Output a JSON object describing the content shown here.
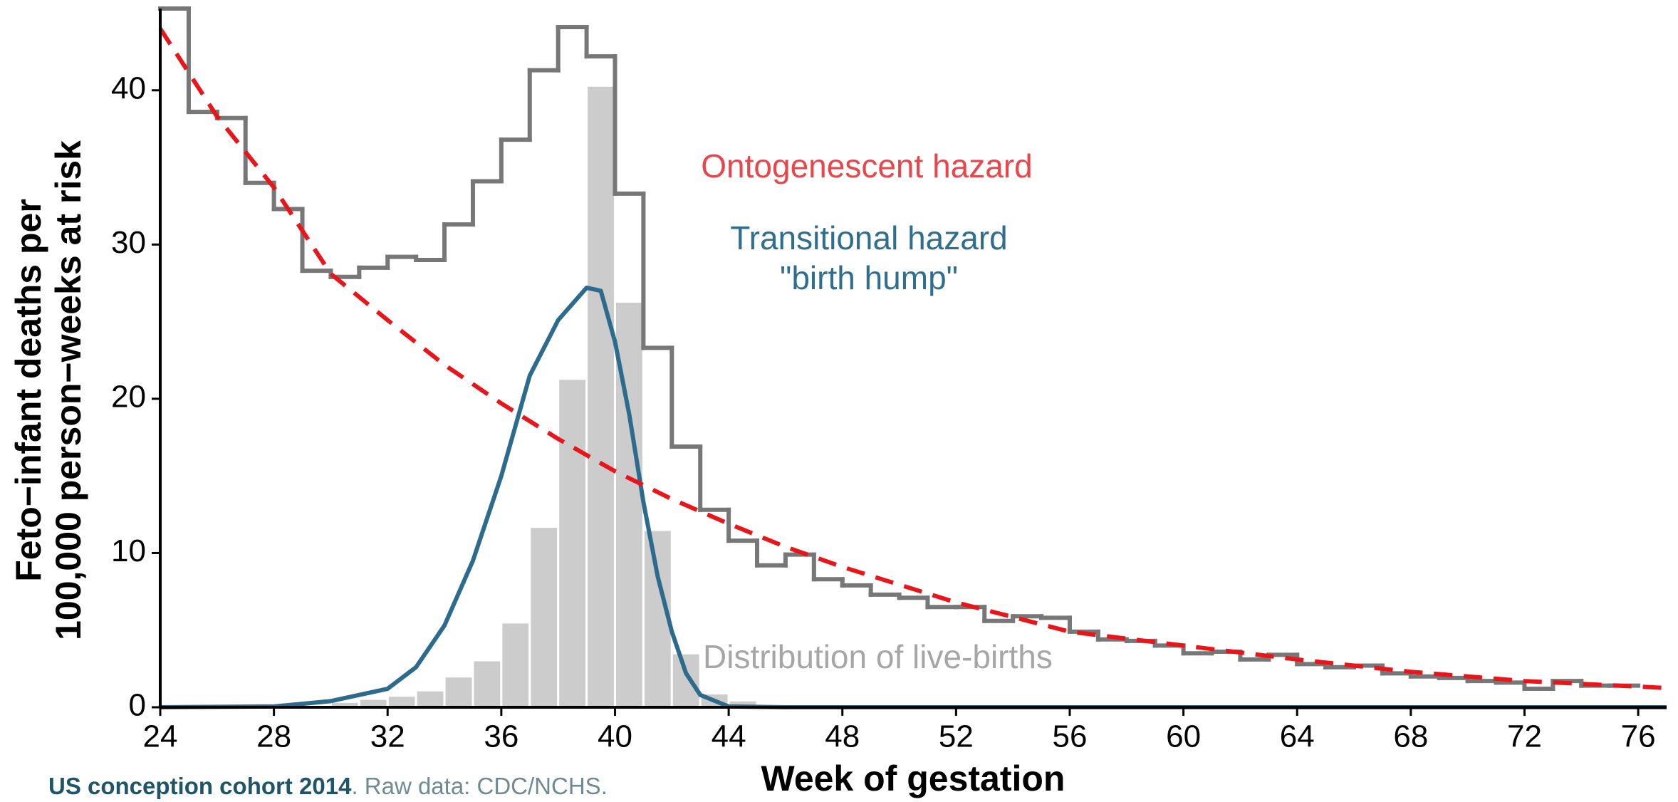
{
  "chart_data": {
    "type": "combo",
    "xlabel": "Week of gestation",
    "ylabel": [
      "Feto−infant deaths per",
      "100,000 person−weeks at risk"
    ],
    "caption_bold": "US conception cohort 2014",
    "caption_rest": ". Raw data: CDC/NCHS.",
    "caption_colors": [
      "#1f5566",
      "#6f8a92"
    ],
    "xlim": [
      24,
      77
    ],
    "ylim": [
      0,
      45.3
    ],
    "xticks": [
      24,
      28,
      32,
      36,
      40,
      44,
      48,
      52,
      56,
      60,
      64,
      68,
      72,
      76
    ],
    "yticks": [
      0,
      10,
      20,
      30,
      40
    ],
    "annotations": [
      {
        "text": "Ontogenescent hazard",
        "color": "#e8464b"
      },
      {
        "text": "Transitional hazard",
        "color": "#2e6e8e"
      },
      {
        "text": "\"birth hump\"",
        "color": "#2e6e8e"
      },
      {
        "text": "Distribution of live-births",
        "color": "#a6a6a6"
      }
    ],
    "series": [
      {
        "type": "bar",
        "color": "#cccccc",
        "bins": [
          29,
          30,
          31,
          32,
          33,
          34,
          35,
          36,
          37,
          38,
          39,
          40,
          41,
          42,
          43,
          44,
          45,
          46
        ],
        "values": [
          0.15,
          0.35,
          0.55,
          0.75,
          1.1,
          2.0,
          3.05,
          5.5,
          11.7,
          21.3,
          40.3,
          26.3,
          11.5,
          3.5,
          0.9,
          0.45,
          0.2
        ]
      },
      {
        "type": "step",
        "color": "#777777",
        "bins": [
          24,
          25,
          26,
          27,
          28,
          29,
          30,
          31,
          32,
          33,
          34,
          35,
          36,
          37,
          38,
          39,
          40,
          41,
          42,
          43,
          44,
          45,
          46,
          47,
          48,
          49,
          50,
          51,
          52,
          53,
          54,
          55,
          56,
          57,
          58,
          59,
          60,
          61,
          62,
          63,
          64,
          65,
          66,
          67,
          68,
          69,
          70,
          71,
          72,
          73,
          74,
          75,
          76
        ],
        "values": [
          45.3,
          38.6,
          38.2,
          34.0,
          32.3,
          28.3,
          27.9,
          28.5,
          29.2,
          29.0,
          31.3,
          34.1,
          36.8,
          41.3,
          44.1,
          42.2,
          33.3,
          23.3,
          16.9,
          12.8,
          10.8,
          9.2,
          9.9,
          8.3,
          7.9,
          7.3,
          7.1,
          6.5,
          6.5,
          5.6,
          5.9,
          5.8,
          4.9,
          4.4,
          4.3,
          4.0,
          3.5,
          3.6,
          3.1,
          3.4,
          2.8,
          2.6,
          2.7,
          2.2,
          2.0,
          1.9,
          1.7,
          1.6,
          1.2,
          1.7,
          1.4,
          1.4
        ]
      },
      {
        "type": "line",
        "color": "#2d6b8c",
        "x": [
          24,
          28,
          30,
          32,
          33,
          34,
          35,
          36,
          37,
          38,
          39,
          39.5,
          40,
          40.5,
          41,
          41.5,
          42,
          42.5,
          43,
          44,
          46,
          77
        ],
        "values": [
          0,
          0.05,
          0.4,
          1.2,
          2.6,
          5.3,
          9.5,
          15,
          21.5,
          25.1,
          27.2,
          27,
          23.7,
          19,
          13.3,
          8.5,
          4.9,
          2.2,
          0.8,
          0.05,
          0,
          0
        ]
      },
      {
        "type": "line",
        "color": "#e8151b",
        "dashed": true,
        "x": [
          24,
          26,
          28,
          30,
          32,
          34,
          36,
          38,
          40,
          42,
          44,
          46,
          48,
          52,
          56,
          60,
          64,
          68,
          72,
          77
        ],
        "values": [
          44.0,
          38.3,
          33.7,
          28.1,
          25.1,
          22.2,
          19.7,
          17.4,
          15.3,
          13.5,
          11.9,
          10.4,
          9.1,
          6.8,
          4.9,
          4.0,
          3.1,
          2.3,
          1.7,
          1.25
        ]
      }
    ]
  }
}
